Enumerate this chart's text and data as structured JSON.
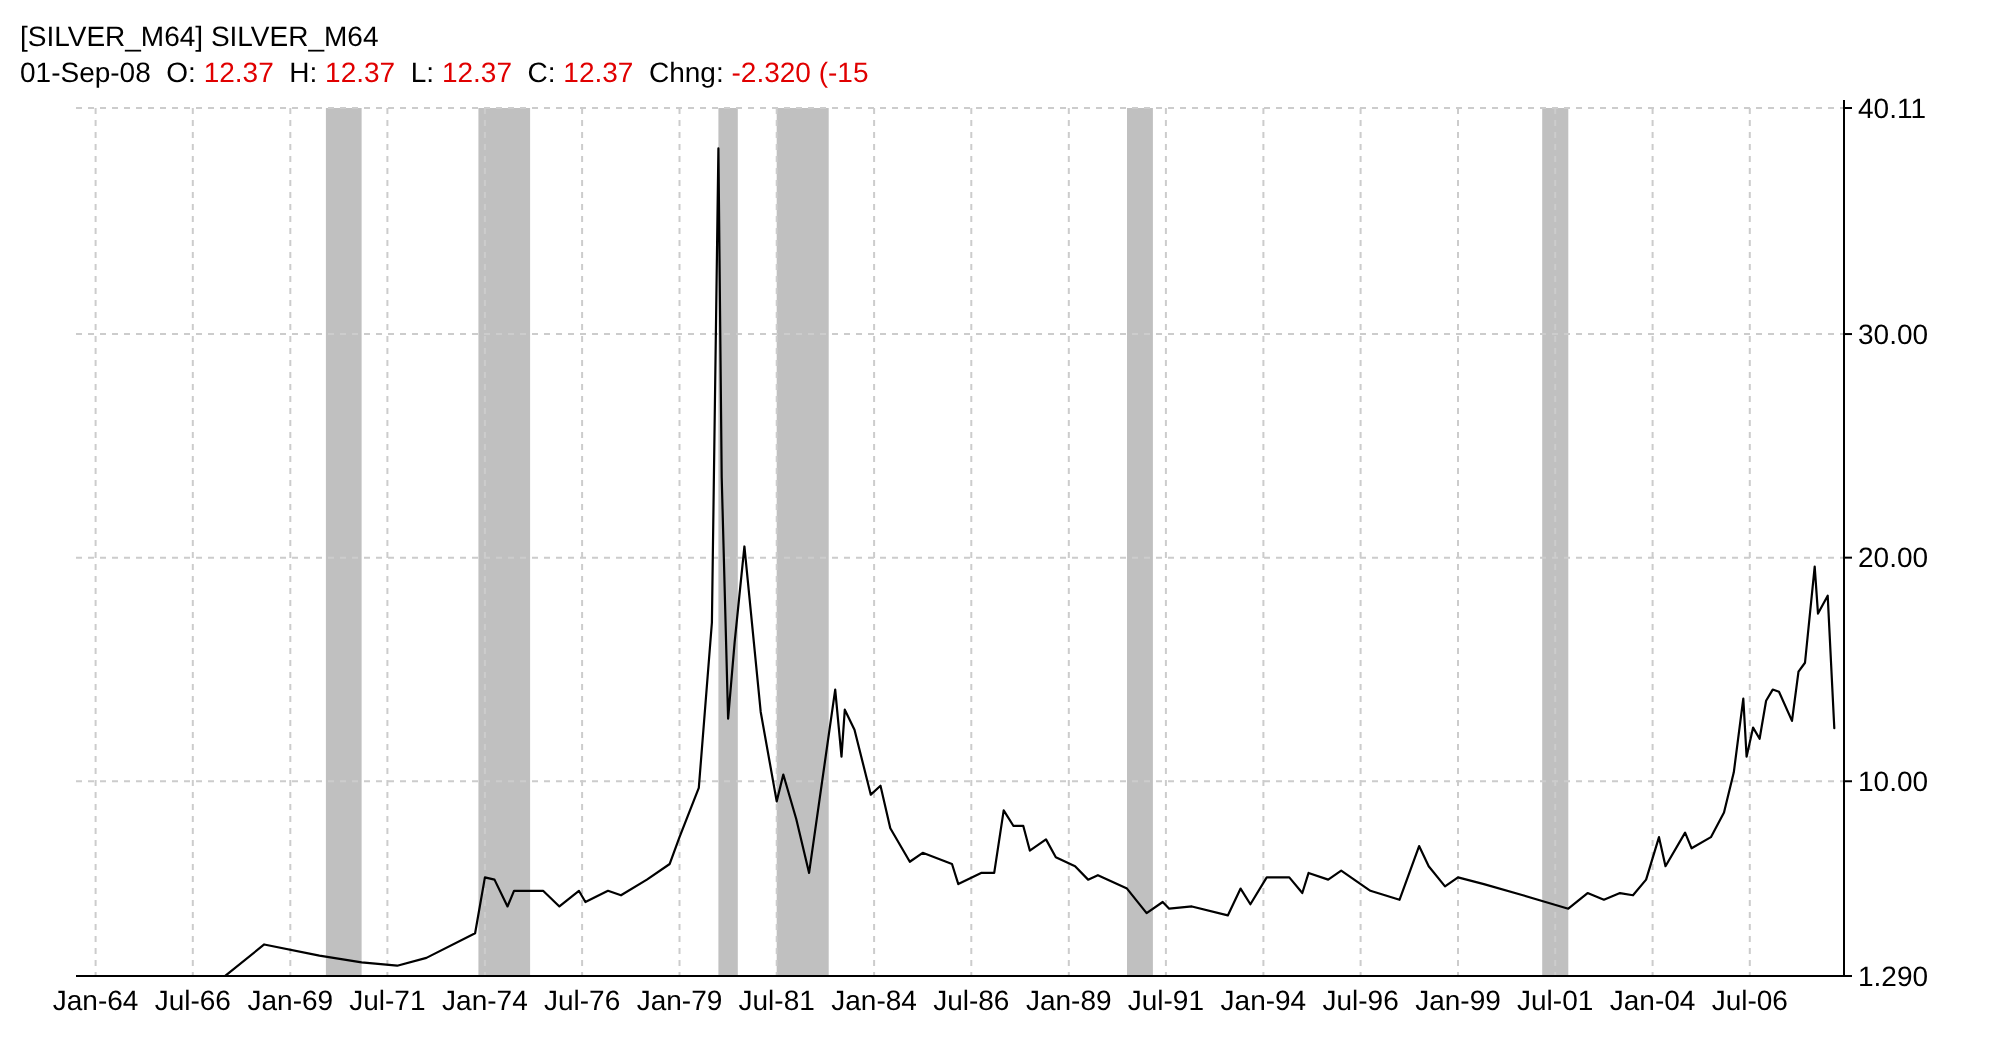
{
  "chart_data": {
    "type": "line",
    "title": "[SILVER_M64] SILVER_M64",
    "subtitle": "01-Sep-08  O: 12.37  H: 12.37  L: 12.37  C: 12.37  Chng: -2.320 (-15",
    "x": [
      "1967-05",
      "1968-05",
      "1969-10",
      "1970-11",
      "1971-10",
      "1972-07",
      "1973-10",
      "1974-01",
      "1974-04",
      "1974-08",
      "1974-10",
      "1975-07",
      "1975-12",
      "1976-06",
      "1976-08",
      "1977-03",
      "1977-07",
      "1978-03",
      "1978-10",
      "1979-01",
      "1979-07",
      "1979-11",
      "1980-01",
      "1980-02",
      "1980-04",
      "1980-06",
      "1980-09",
      "1981-02",
      "1981-07",
      "1981-09",
      "1982-01",
      "1982-05",
      "1983-01",
      "1983-03",
      "1983-04",
      "1983-07",
      "1983-12",
      "1984-03",
      "1984-06",
      "1984-12",
      "1985-04",
      "1986-01",
      "1986-03",
      "1986-10",
      "1987-02",
      "1987-05",
      "1987-08",
      "1987-11",
      "1988-01",
      "1988-06",
      "1988-09",
      "1989-03",
      "1989-07",
      "1989-10",
      "1990-07",
      "1991-01",
      "1991-06",
      "1991-08",
      "1992-03",
      "1993-02",
      "1993-06",
      "1993-09",
      "1994-02",
      "1994-09",
      "1995-01",
      "1995-03",
      "1995-09",
      "1996-01",
      "1996-10",
      "1997-07",
      "1998-01",
      "1998-04",
      "1998-09",
      "1999-01",
      "1999-09",
      "2000-09",
      "2001-04",
      "2001-11",
      "2002-05",
      "2002-10",
      "2003-03",
      "2003-07",
      "2003-11",
      "2004-03",
      "2004-05",
      "2004-11",
      "2005-01",
      "2005-07",
      "2005-11",
      "2006-02",
      "2006-05",
      "2006-06",
      "2006-08",
      "2006-10",
      "2006-12",
      "2007-02",
      "2007-04",
      "2007-08",
      "2007-10",
      "2007-12",
      "2008-03",
      "2008-04",
      "2008-07",
      "2008-09"
    ],
    "series": [
      {
        "color": "#000000",
        "values": [
          1.3,
          2.7,
          2.2,
          1.9,
          1.75,
          2.1,
          3.2,
          5.7,
          5.6,
          4.4,
          5.1,
          5.1,
          4.4,
          5.1,
          4.6,
          5.1,
          4.9,
          5.6,
          6.3,
          7.5,
          9.7,
          17.1,
          38.3,
          23.6,
          12.8,
          16.2,
          20.5,
          13.1,
          9.1,
          10.3,
          8.3,
          5.9,
          14.1,
          11.1,
          13.2,
          12.3,
          9.4,
          9.8,
          7.9,
          6.4,
          6.8,
          6.3,
          5.4,
          5.9,
          5.9,
          8.7,
          8.0,
          8.0,
          6.9,
          7.4,
          6.6,
          6.2,
          5.6,
          5.8,
          5.2,
          4.1,
          4.6,
          4.3,
          4.4,
          4.0,
          5.2,
          4.5,
          5.7,
          5.7,
          5.0,
          5.9,
          5.6,
          6.0,
          5.1,
          4.7,
          7.1,
          6.2,
          5.3,
          5.7,
          5.4,
          4.9,
          4.6,
          4.3,
          5.0,
          4.7,
          5.0,
          4.9,
          5.6,
          7.5,
          6.2,
          7.7,
          7.0,
          7.5,
          8.6,
          10.4,
          13.7,
          11.1,
          12.4,
          11.9,
          13.6,
          14.1,
          14.0,
          12.7,
          14.9,
          15.3,
          19.6,
          17.5,
          18.3,
          12.37
        ]
      }
    ],
    "xlim": [
      "1963-07",
      "2008-12"
    ],
    "xticks": [
      {
        "value": "1964-01",
        "label": "Jan-64"
      },
      {
        "value": "1966-07",
        "label": "Jul-66"
      },
      {
        "value": "1969-01",
        "label": "Jan-69"
      },
      {
        "value": "1971-07",
        "label": "Jul-71"
      },
      {
        "value": "1974-01",
        "label": "Jan-74"
      },
      {
        "value": "1976-07",
        "label": "Jul-76"
      },
      {
        "value": "1979-01",
        "label": "Jan-79"
      },
      {
        "value": "1981-07",
        "label": "Jul-81"
      },
      {
        "value": "1984-01",
        "label": "Jan-84"
      },
      {
        "value": "1986-07",
        "label": "Jul-86"
      },
      {
        "value": "1989-01",
        "label": "Jan-89"
      },
      {
        "value": "1991-07",
        "label": "Jul-91"
      },
      {
        "value": "1994-01",
        "label": "Jan-94"
      },
      {
        "value": "1996-07",
        "label": "Jul-96"
      },
      {
        "value": "1999-01",
        "label": "Jan-99"
      },
      {
        "value": "2001-07",
        "label": "Jul-01"
      },
      {
        "value": "2004-01",
        "label": "Jan-04"
      },
      {
        "value": "2006-07",
        "label": "Jul-06"
      }
    ],
    "ylim": [
      1.29,
      40.11
    ],
    "yticks": [
      {
        "value": 1.29,
        "label": "1.290"
      },
      {
        "value": 10,
        "label": "10.00"
      },
      {
        "value": 20,
        "label": "20.00"
      },
      {
        "value": 30,
        "label": "30.00"
      },
      {
        "value": 40.11,
        "label": "40.11"
      }
    ],
    "grid": true,
    "bands": [
      {
        "axis": "x",
        "from": "1969-12",
        "to": "1970-11",
        "color": "#c0c0c0"
      },
      {
        "axis": "x",
        "from": "1973-11",
        "to": "1975-03",
        "color": "#c0c0c0"
      },
      {
        "axis": "x",
        "from": "1980-01",
        "to": "1980-07",
        "color": "#c0c0c0"
      },
      {
        "axis": "x",
        "from": "1981-07",
        "to": "1982-11",
        "color": "#c0c0c0"
      },
      {
        "axis": "x",
        "from": "1990-07",
        "to": "1991-03",
        "color": "#c0c0c0"
      },
      {
        "axis": "x",
        "from": "2001-03",
        "to": "2001-11",
        "color": "#c0c0c0"
      }
    ]
  }
}
